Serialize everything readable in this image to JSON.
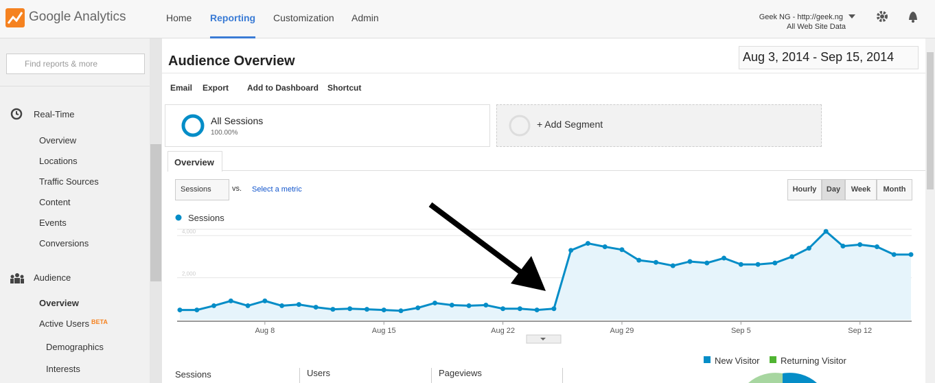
{
  "header": {
    "logo": "Google Analytics",
    "nav": [
      "Home",
      "Reporting",
      "Customization",
      "Admin"
    ],
    "active_nav": "Reporting",
    "account": "Geek NG - http://geek.ng",
    "view": "All Web Site Data"
  },
  "sidebar": {
    "search_placeholder": "Find reports & more",
    "sections": [
      {
        "label": "Real-Time",
        "items": [
          "Overview",
          "Locations",
          "Traffic Sources",
          "Content",
          "Events",
          "Conversions"
        ]
      },
      {
        "label": "Audience",
        "items": [
          "Overview",
          "Active Users",
          "Demographics",
          "Interests"
        ]
      }
    ],
    "beta": "BETA"
  },
  "report": {
    "title": "Audience Overview",
    "date_range": "Aug 3, 2014 - Sep 15, 2014",
    "toolbar": [
      "Email",
      "Export",
      "Add to Dashboard",
      "Shortcut"
    ],
    "segment": {
      "name": "All Sessions",
      "share": "100.00%"
    },
    "add_segment": "+ Add Segment",
    "tab": "Overview",
    "metric": "Sessions",
    "vs": "vs.",
    "select_metric": "Select a metric",
    "granularity": [
      "Hourly",
      "Day",
      "Week",
      "Month"
    ]
  },
  "chart_data": {
    "type": "area",
    "categories": [
      null,
      null,
      null,
      null,
      null,
      "Aug 8",
      null,
      null,
      null,
      null,
      null,
      null,
      "Aug 15",
      null,
      null,
      null,
      null,
      null,
      null,
      "Aug 22",
      null,
      null,
      null,
      null,
      null,
      null,
      "Aug 29",
      null,
      null,
      null,
      null,
      null,
      null,
      "Sep 5",
      null,
      null,
      null,
      null,
      null,
      null,
      "Sep 12",
      null,
      null,
      null
    ],
    "series": [
      {
        "name": "Sessions",
        "color": "#058dc7",
        "values": [
          470,
          470,
          670,
          900,
          670,
          900,
          670,
          730,
          600,
          500,
          530,
          500,
          470,
          430,
          570,
          800,
          700,
          670,
          700,
          530,
          530,
          470,
          530,
          3300,
          3630,
          3470,
          3330,
          2830,
          2730,
          2570,
          2770,
          2700,
          2930,
          2630,
          2630,
          2700,
          3000,
          3400,
          4200,
          3500,
          3570,
          3470,
          3100,
          3100
        ]
      }
    ],
    "ylim": [
      0,
      4300
    ],
    "yticks": [
      {
        "value": 2000,
        "label": "2,000"
      },
      {
        "value": 4000,
        "label": "4,000"
      }
    ],
    "grid": true
  },
  "summary": {
    "metrics": [
      "Sessions",
      "Users",
      "Pageviews"
    ]
  },
  "pie_legend": [
    {
      "name": "New Visitor",
      "color": "#058dc7"
    },
    {
      "name": "Returning Visitor",
      "color": "#50b432"
    }
  ]
}
